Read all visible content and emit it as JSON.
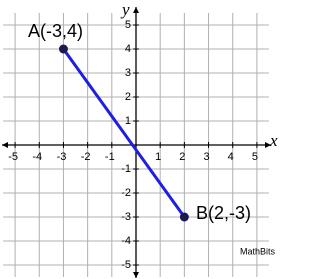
{
  "chart_data": {
    "type": "line",
    "x": [
      -3,
      2
    ],
    "values": [
      4,
      -3
    ],
    "color": "#1f1fe0",
    "point_color": "#1a1a50",
    "xlabel": "x",
    "ylabel": "y",
    "xlim": [
      -5.5,
      5.5
    ],
    "ylim": [
      -5.5,
      5.5
    ],
    "xticks": [
      -5,
      -4,
      -3,
      -2,
      -1,
      1,
      2,
      3,
      4,
      5
    ],
    "yticks": [
      -5,
      -4,
      -3,
      -2,
      -1,
      1,
      2,
      3,
      4,
      5
    ],
    "grid": true,
    "annotations": [
      "A(-3,4)",
      "B(2,-3)",
      "MathBits"
    ]
  }
}
